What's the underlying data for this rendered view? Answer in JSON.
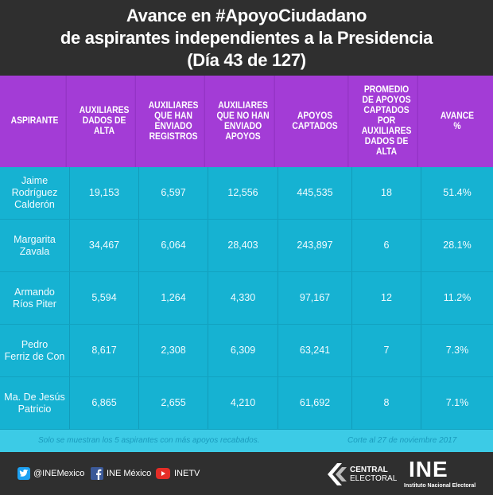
{
  "header": {
    "title": [
      "Avance en #ApoyoCiudadano",
      "de aspirantes independientes a la Presidencia",
      "(Día 43 de 127)"
    ]
  },
  "table": {
    "columns": [
      [
        "ASPIRANTE"
      ],
      [
        "AUXILIARES",
        "DADOS DE",
        "ALTA"
      ],
      [
        "AUXILIARES",
        "QUE HAN",
        "ENVIADO",
        "REGISTROS"
      ],
      [
        "AUXILIARES",
        "QUE NO HAN",
        "ENVIADO",
        "APOYOS"
      ],
      [
        "APOYOS",
        "CAPTADOS"
      ],
      [
        "PROMEDIO",
        "DE APOYOS",
        "CAPTADOS POR",
        "AUXILIARES",
        "DADOS DE",
        "ALTA"
      ],
      [
        "AVANCE",
        "%"
      ]
    ],
    "rows": [
      [
        [
          "Jaime",
          "Rodríguez",
          "Calderón"
        ],
        "19,153",
        "6,597",
        "12,556",
        "445,535",
        "18",
        "51.4%"
      ],
      [
        [
          "Margarita",
          "Zavala"
        ],
        "34,467",
        "6,064",
        "28,403",
        "243,897",
        "6",
        "28.1%"
      ],
      [
        [
          "Armando",
          "Ríos Piter"
        ],
        "5,594",
        "1,264",
        "4,330",
        "97,167",
        "12",
        "11.2%"
      ],
      [
        [
          "Pedro",
          "Ferriz de Con"
        ],
        "8,617",
        "2,308",
        "6,309",
        "63,241",
        "7",
        "7.3%"
      ],
      [
        [
          "Ma. De Jesús",
          "Patricio"
        ],
        "6,865",
        "2,655",
        "4,210",
        "61,692",
        "8",
        "7.1%"
      ]
    ]
  },
  "notes": {
    "left": "Solo se muestran los 5 aspirantes con más apoyos recabados.",
    "right": "Corte al 27 de noviembre 2017"
  },
  "footer": {
    "twitter": "@INEMexico",
    "facebook": "INE México",
    "youtube": "INETV",
    "central": [
      "CENTRAL",
      "ELECTORAL"
    ],
    "ine": "INE",
    "ine_full": "Instituto Nacional Electoral"
  }
}
